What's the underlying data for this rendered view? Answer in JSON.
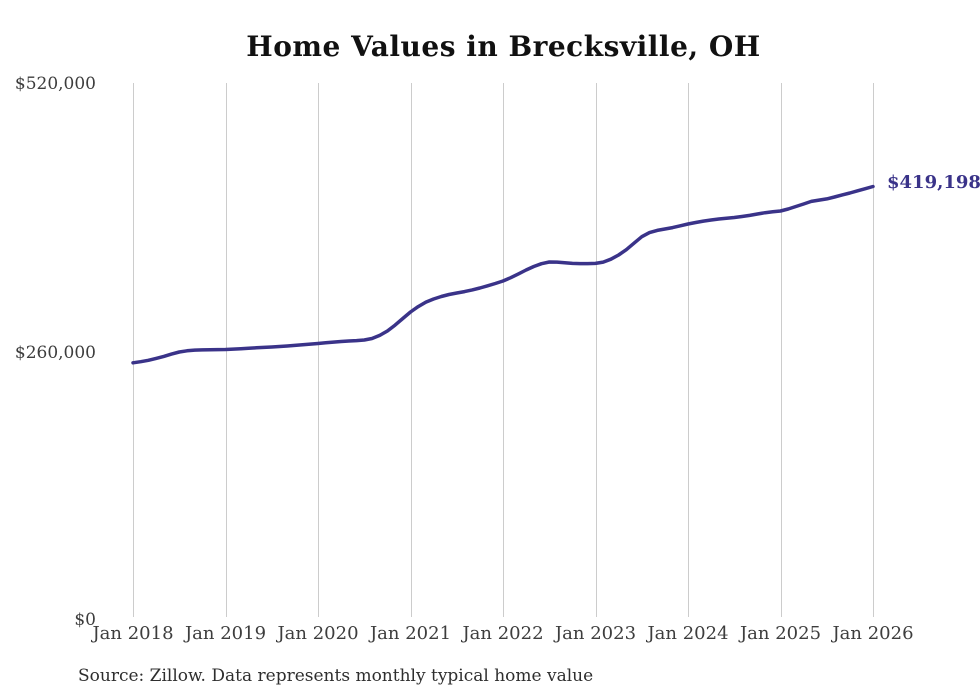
{
  "title": "Home Values in Brecksville, OH",
  "source_note": "Source: Zillow. Data represents monthly typical home value",
  "end_label": "$419,198",
  "colors": {
    "line": "#3a3389",
    "grid": "#cccccc",
    "title_text": "#111111",
    "axis_text": "#3d3d3d",
    "source_text": "#2e2e2e",
    "background": "#ffffff"
  },
  "y_axis": {
    "ticks": [
      "$520,000",
      "$260,000",
      "$0"
    ]
  },
  "x_axis": {
    "ticks": [
      "Jan 2018",
      "Jan 2019",
      "Jan 2020",
      "Jan 2021",
      "Jan 2022",
      "Jan 2023",
      "Jan 2024",
      "Jan 2025",
      "Jan 2026"
    ]
  },
  "chart_data": {
    "type": "line",
    "title": "Home Values in Brecksville, OH",
    "xlabel": "",
    "ylabel": "",
    "ylim": [
      0,
      520000
    ],
    "y_tick_values": [
      0,
      260000,
      520000
    ],
    "x_tick_labels": [
      "Jan 2018",
      "Jan 2019",
      "Jan 2020",
      "Jan 2021",
      "Jan 2022",
      "Jan 2023",
      "Jan 2024",
      "Jan 2025",
      "Jan 2026"
    ],
    "frequency": "monthly",
    "x_start": "Jan 2018",
    "x_end": "Jan 2026",
    "grid": "vertical-only",
    "legend_position": "none",
    "end_value": 419198,
    "end_value_label": "$419,198",
    "series": [
      {
        "name": "Typical home value",
        "values": [
          247500,
          248600,
          250000,
          251800,
          253800,
          256000,
          258100,
          259200,
          259900,
          260100,
          260200,
          260350,
          260500,
          260900,
          261300,
          261700,
          262100,
          262500,
          262900,
          263400,
          263900,
          264500,
          265100,
          265700,
          266300,
          267000,
          267700,
          268300,
          268800,
          269200,
          269700,
          271200,
          274200,
          278500,
          284200,
          290700,
          297000,
          302300,
          306600,
          309700,
          312100,
          314000,
          315500,
          316900,
          318500,
          320400,
          322500,
          324800,
          327200,
          330400,
          334100,
          337900,
          341300,
          344000,
          345700,
          345600,
          344900,
          344300,
          344100,
          344100,
          344300,
          345600,
          348400,
          352500,
          357700,
          364000,
          370300,
          374300,
          376500,
          377800,
          379200,
          380900,
          382700,
          384200,
          385500,
          386600,
          387600,
          388300,
          389000,
          390000,
          391100,
          392400,
          393700,
          394600,
          395400,
          397300,
          399700,
          402200,
          404700,
          406000,
          407100,
          409000,
          411000,
          412900,
          415000,
          417100,
          419198
        ]
      }
    ]
  }
}
